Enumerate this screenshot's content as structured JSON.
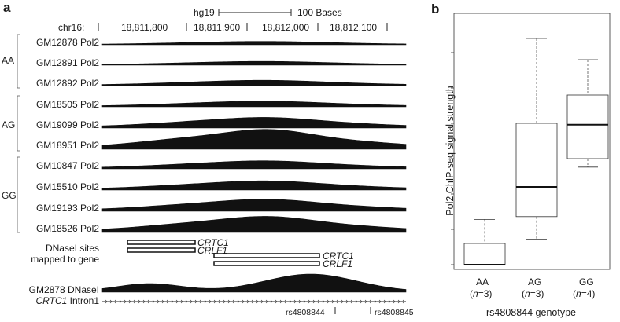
{
  "panel_a": {
    "letter": "a",
    "genome_label": "hg19",
    "scale_label": "100 Bases",
    "chrom_label": "chr16:",
    "coord_ticks": [
      "18,811,800",
      "18,811,900",
      "18,812,000",
      "18,812,100"
    ],
    "groups": [
      {
        "genotype": "AA",
        "tracks": [
          {
            "label": "GM12878 Pol2",
            "amplitude": 0.18
          },
          {
            "label": "GM12891 Pol2",
            "amplitude": 0.2
          },
          {
            "label": "GM12892 Pol2",
            "amplitude": 0.28
          }
        ]
      },
      {
        "genotype": "AG",
        "tracks": [
          {
            "label": "GM18505 Pol2",
            "amplitude": 0.3
          },
          {
            "label": "GM19099 Pol2",
            "amplitude": 0.55
          },
          {
            "label": "GM18951 Pol2",
            "amplitude": 1.0
          }
        ]
      },
      {
        "genotype": "GG",
        "tracks": [
          {
            "label": "GM10847 Pol2",
            "amplitude": 0.42
          },
          {
            "label": "GM15510 Pol2",
            "amplitude": 0.48
          },
          {
            "label": "GM19193 Pol2",
            "amplitude": 0.62
          },
          {
            "label": "GM18526 Pol2",
            "amplitude": 0.82
          }
        ]
      }
    ],
    "dnase_sites_label_1": "DNaseI sites",
    "dnase_sites_label_2": "mapped to gene",
    "gene_bar_1": {
      "gene_a": "CRTC1",
      "gene_b": "CRLF1"
    },
    "gene_bar_2": {
      "gene_a": "CRTC1",
      "gene_b": "CRLF1"
    },
    "dnase_track_label": "GM2878 DNaseI",
    "intron_gene": "CRTC1",
    "intron_suffix": " Intron1",
    "snp_1": "rs4808844",
    "snp_2": "rs4808845"
  },
  "chart_data": {
    "type": "box",
    "panel": "b",
    "ylabel": "Pol2 ChIP-seq signal strength",
    "xlabel": "rs4808844 genotype",
    "categories": [
      {
        "name": "AA",
        "n_label": "n",
        "n_value": "=3"
      },
      {
        "name": "AG",
        "n_label": "n",
        "n_value": "=3"
      },
      {
        "name": "GG",
        "n_label": "n",
        "n_value": "=4"
      }
    ],
    "boxes": [
      {
        "whisker_low": 0.0,
        "q1": 0.0,
        "median": 0.0,
        "q3": 0.15,
        "whisker_high": 0.32
      },
      {
        "whisker_low": 0.18,
        "q1": 0.34,
        "median": 0.55,
        "q3": 1.0,
        "whisker_high": 1.6
      },
      {
        "whisker_low": 0.69,
        "q1": 0.75,
        "median": 0.99,
        "q3": 1.2,
        "whisker_high": 1.45
      }
    ],
    "ylim": [
      0,
      1.7
    ],
    "y_tick_values": [
      0.0,
      0.5,
      1.0,
      1.5
    ],
    "grid": false
  }
}
